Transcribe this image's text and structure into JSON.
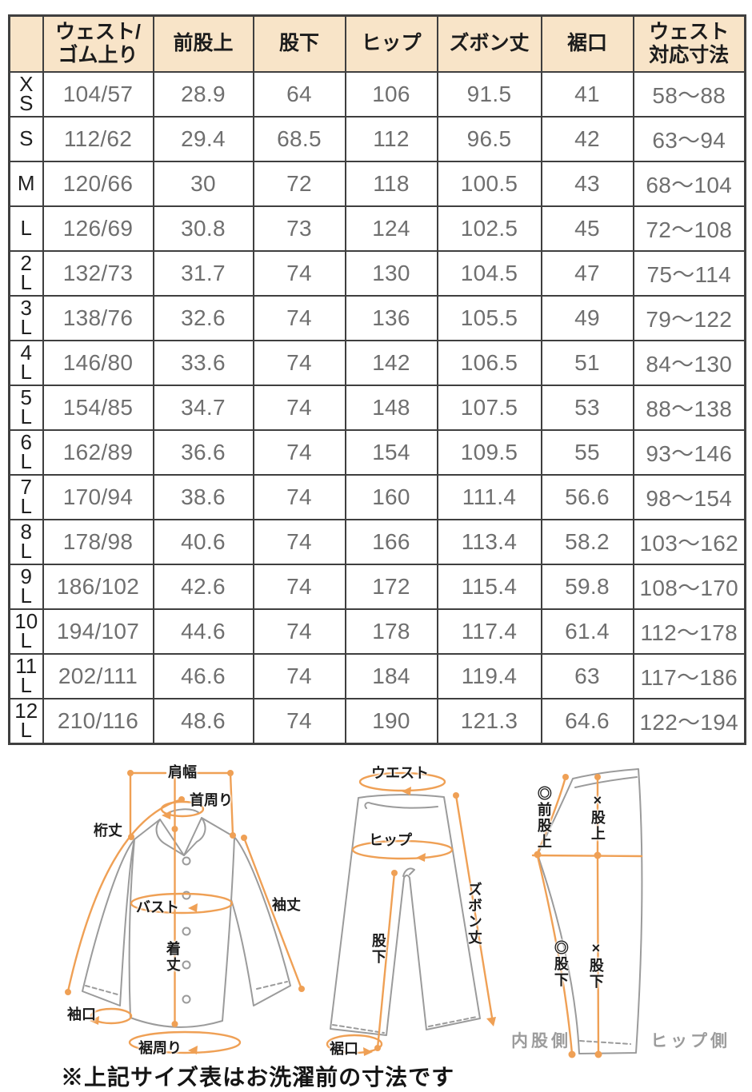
{
  "colors": {
    "header_bg": "#f8e4c8",
    "accent_orange": "#efa055",
    "grid_line": "#3f3f3f",
    "value_text": "#6f6f6f",
    "garment_outline": "#9b9b9b",
    "side_note_gray": "#9c9c9c"
  },
  "table": {
    "corner": "",
    "headers": [
      "ウェスト/\nゴム上り",
      "前股上",
      "股下",
      "ヒップ",
      "ズボン丈",
      "裾口",
      "ウェスト\n対応寸法"
    ],
    "rows": [
      {
        "size": "X\nS",
        "values": [
          "104/57",
          "28.9",
          "64",
          "106",
          "91.5",
          "41",
          "58〜88"
        ]
      },
      {
        "size": "S",
        "values": [
          "112/62",
          "29.4",
          "68.5",
          "112",
          "96.5",
          "42",
          "63〜94"
        ]
      },
      {
        "size": "M",
        "values": [
          "120/66",
          "30",
          "72",
          "118",
          "100.5",
          "43",
          "68〜104"
        ]
      },
      {
        "size": "L",
        "values": [
          "126/69",
          "30.8",
          "73",
          "124",
          "102.5",
          "45",
          "72〜108"
        ]
      },
      {
        "size": "2\nL",
        "values": [
          "132/73",
          "31.7",
          "74",
          "130",
          "104.5",
          "47",
          "75〜114"
        ]
      },
      {
        "size": "3\nL",
        "values": [
          "138/76",
          "32.6",
          "74",
          "136",
          "105.5",
          "49",
          "79〜122"
        ]
      },
      {
        "size": "4\nL",
        "values": [
          "146/80",
          "33.6",
          "74",
          "142",
          "106.5",
          "51",
          "84〜130"
        ]
      },
      {
        "size": "5\nL",
        "values": [
          "154/85",
          "34.7",
          "74",
          "148",
          "107.5",
          "53",
          "88〜138"
        ]
      },
      {
        "size": "6\nL",
        "values": [
          "162/89",
          "36.6",
          "74",
          "154",
          "109.5",
          "55",
          "93〜146"
        ]
      },
      {
        "size": "7\nL",
        "values": [
          "170/94",
          "38.6",
          "74",
          "160",
          "111.4",
          "56.6",
          "98〜154"
        ]
      },
      {
        "size": "8\nL",
        "values": [
          "178/98",
          "40.6",
          "74",
          "166",
          "113.4",
          "58.2",
          "103〜162"
        ]
      },
      {
        "size": "9\nL",
        "values": [
          "186/102",
          "42.6",
          "74",
          "172",
          "115.4",
          "59.8",
          "108〜170"
        ]
      },
      {
        "size": "10\nL",
        "values": [
          "194/107",
          "44.6",
          "74",
          "178",
          "117.4",
          "61.4",
          "112〜178"
        ]
      },
      {
        "size": "11\nL",
        "values": [
          "202/111",
          "46.6",
          "74",
          "184",
          "119.4",
          "63",
          "117〜186"
        ]
      },
      {
        "size": "12\nL",
        "values": [
          "210/116",
          "48.6",
          "74",
          "190",
          "121.3",
          "64.6",
          "122〜194"
        ]
      }
    ]
  },
  "diagrams": {
    "shirt": {
      "shoulder_width": "肩幅",
      "neck": "首周り",
      "yuki_length": "桁丈",
      "bust": "バスト",
      "sleeve_length": "袖丈",
      "body_length": "着丈",
      "cuff": "袖口",
      "hem_round": "裾周り"
    },
    "pants_front": {
      "waist": "ウエスト",
      "hip": "ヒップ",
      "pants_length": "ズボン丈",
      "inseam": "股下",
      "hem": "裾口"
    },
    "pants_side": {
      "front_rise": "◎前股上",
      "rise": "×股上",
      "inseam_front": "◎股下",
      "inseam_back": "×股下",
      "inner_side": "内股側",
      "hip_side": "ヒップ側"
    }
  },
  "note": {
    "text": "※上記サイズ表はお洗濯前の寸法です"
  }
}
